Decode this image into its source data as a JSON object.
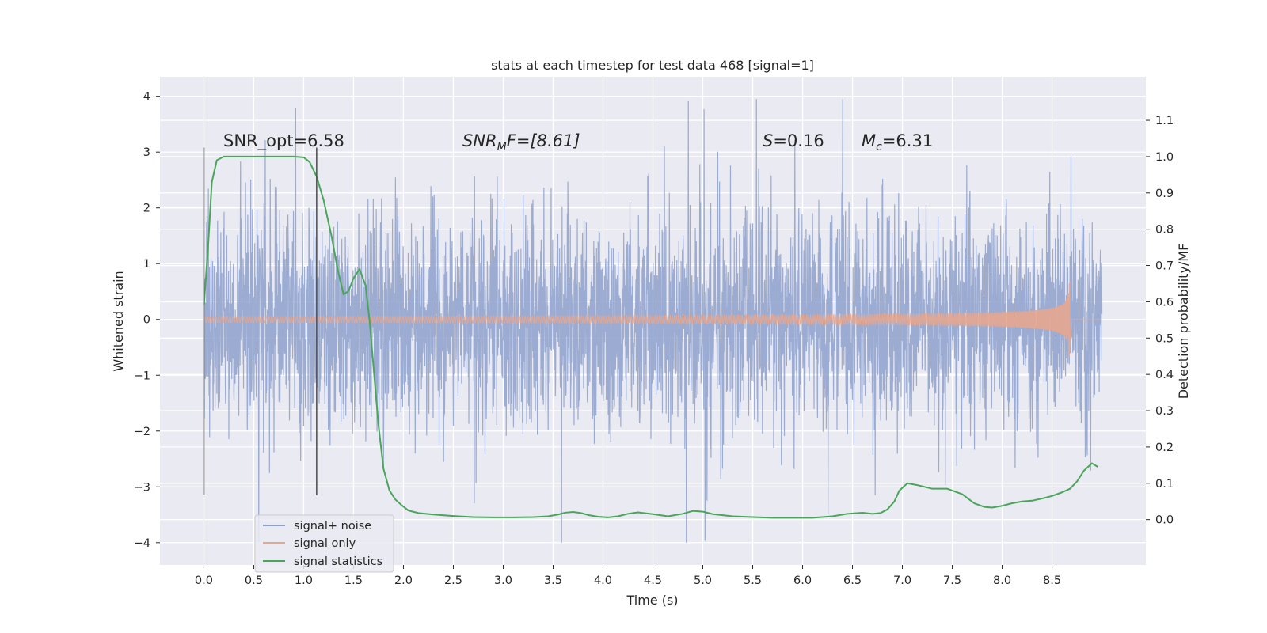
{
  "chart_data": {
    "type": "line",
    "title": "stats at each timestep for test data 468 [signal=1]",
    "xlabel": "Time (s)",
    "ylabel": "Whitened strain",
    "y2label": "Detection probability/MF",
    "xlim": [
      -0.44,
      9.44
    ],
    "ylim": [
      -4.4,
      4.35
    ],
    "y2lim": [
      -0.125,
      1.22
    ],
    "xticks": [
      0.0,
      0.5,
      1.0,
      1.5,
      2.0,
      2.5,
      3.0,
      3.5,
      4.0,
      4.5,
      5.0,
      5.5,
      6.0,
      6.5,
      7.0,
      7.5,
      8.0,
      8.5
    ],
    "xtick_labels": [
      "0.0",
      "0.5",
      "1.0",
      "1.5",
      "2.0",
      "2.5",
      "3.0",
      "3.5",
      "4.0",
      "4.5",
      "5.0",
      "5.5",
      "6.0",
      "6.5",
      "7.0",
      "7.5",
      "8.0",
      "8.5"
    ],
    "yticks": [
      -4,
      -3,
      -2,
      -1,
      0,
      1,
      2,
      3,
      4
    ],
    "ytick_labels": [
      "−4",
      "−3",
      "−2",
      "−1",
      "0",
      "1",
      "2",
      "3",
      "4"
    ],
    "y2ticks": [
      0.0,
      0.1,
      0.2,
      0.3,
      0.4,
      0.5,
      0.6,
      0.7,
      0.8,
      0.9,
      1.0,
      1.1
    ],
    "y2tick_labels": [
      "0.0",
      "0.1",
      "0.2",
      "0.3",
      "0.4",
      "0.5",
      "0.6",
      "0.7",
      "0.8",
      "0.9",
      "1.0",
      "1.1"
    ],
    "grid": true,
    "legend_position": "bottom-left",
    "annotations": {
      "snr_opt": "SNR_opt=6.58",
      "snr_mf_base": "SNR",
      "snr_mf_sub": "M",
      "snr_mf_rest": "F=[8.61]",
      "s_symbol": "S",
      "s_value": "=0.16",
      "mc_symbol": "M",
      "mc_sub": "c",
      "mc_value": "=6.31"
    },
    "vlines": [
      {
        "x": 0.0,
        "y_range": [
          -3.15,
          3.08
        ]
      },
      {
        "x": 1.13,
        "y_range": [
          -3.15,
          3.08
        ]
      }
    ],
    "series": [
      {
        "name": "signal+ noise",
        "color": "#8da0cb",
        "kind": "noise",
        "x_range": [
          0.0,
          9.0
        ],
        "band_sigma": 1.2,
        "peak_max": 3.95,
        "peak_min": -4.0
      },
      {
        "name": "signal only",
        "color": "#e5a68f",
        "kind": "chirp",
        "x_range": [
          0.0,
          8.68
        ],
        "peak_amplitude": 0.68
      },
      {
        "name": "signal statistics",
        "color": "#4aa55a",
        "axis": "right",
        "x": [
          0.0,
          0.04,
          0.08,
          0.13,
          0.2,
          0.3,
          0.5,
          0.7,
          0.9,
          1.0,
          1.06,
          1.13,
          1.2,
          1.28,
          1.34,
          1.4,
          1.45,
          1.5,
          1.56,
          1.62,
          1.66,
          1.7,
          1.75,
          1.8,
          1.86,
          1.92,
          1.98,
          2.05,
          2.15,
          2.3,
          2.5,
          2.7,
          2.9,
          3.1,
          3.3,
          3.45,
          3.55,
          3.62,
          3.7,
          3.78,
          3.86,
          3.95,
          4.05,
          4.15,
          4.25,
          4.35,
          4.5,
          4.65,
          4.8,
          4.9,
          5.0,
          5.1,
          5.3,
          5.5,
          5.7,
          5.9,
          6.1,
          6.3,
          6.45,
          6.6,
          6.7,
          6.78,
          6.85,
          6.92,
          6.97,
          7.05,
          7.15,
          7.3,
          7.45,
          7.6,
          7.72,
          7.82,
          7.9,
          8.0,
          8.1,
          8.2,
          8.3,
          8.4,
          8.5,
          8.6,
          8.68,
          8.75,
          8.82,
          8.9,
          8.96
        ],
        "values": [
          0.59,
          0.74,
          0.93,
          0.99,
          1.0,
          1.0,
          1.0,
          1.0,
          1.0,
          0.998,
          0.985,
          0.945,
          0.88,
          0.78,
          0.69,
          0.62,
          0.63,
          0.665,
          0.69,
          0.645,
          0.55,
          0.42,
          0.26,
          0.14,
          0.08,
          0.055,
          0.04,
          0.025,
          0.018,
          0.014,
          0.01,
          0.007,
          0.006,
          0.006,
          0.007,
          0.009,
          0.014,
          0.019,
          0.021,
          0.018,
          0.012,
          0.008,
          0.006,
          0.009,
          0.016,
          0.02,
          0.015,
          0.009,
          0.016,
          0.024,
          0.022,
          0.015,
          0.009,
          0.007,
          0.005,
          0.005,
          0.005,
          0.009,
          0.016,
          0.019,
          0.016,
          0.018,
          0.028,
          0.05,
          0.08,
          0.1,
          0.095,
          0.085,
          0.085,
          0.07,
          0.045,
          0.035,
          0.033,
          0.038,
          0.045,
          0.05,
          0.052,
          0.058,
          0.065,
          0.075,
          0.085,
          0.105,
          0.135,
          0.155,
          0.145
        ]
      }
    ]
  }
}
